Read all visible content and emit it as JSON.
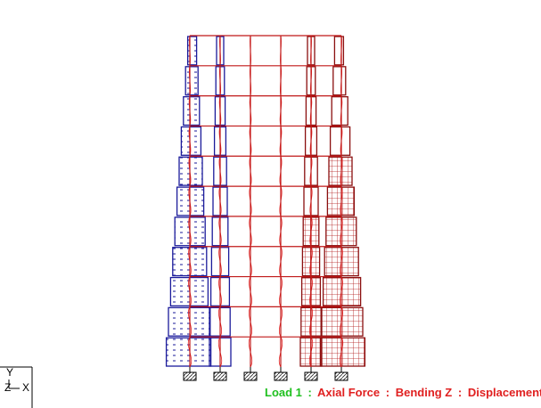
{
  "axes": {
    "y": "Y",
    "z": "Z",
    "x": "X"
  },
  "status": {
    "load": "Load 1",
    "sep1": ":",
    "result1": "Axial Force",
    "sep2": ":",
    "result2": "Bending Z",
    "sep3": ":",
    "result3": "Displacement"
  }
}
